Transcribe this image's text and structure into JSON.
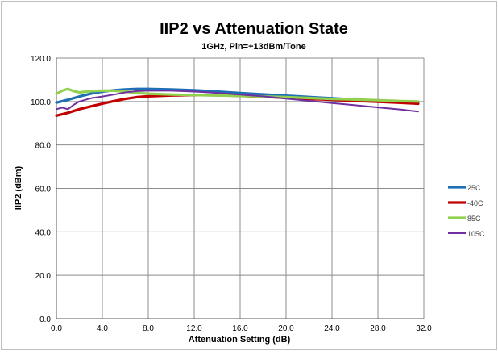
{
  "chart_data": {
    "type": "line",
    "title": "IIP2 vs Attenuation State",
    "subtitle": "1GHz, Pin=+13dBm/Tone",
    "xlabel": "Attenuation Setting (dB)",
    "ylabel": "IIP2 (dBm)",
    "xlim": [
      0,
      32
    ],
    "ylim": [
      0,
      120
    ],
    "x_ticks": [
      "0.0",
      "4.0",
      "8.0",
      "12.0",
      "16.0",
      "20.0",
      "24.0",
      "28.0",
      "32.0"
    ],
    "y_ticks": [
      "0.0",
      "20.0",
      "40.0",
      "60.0",
      "80.0",
      "100.0",
      "120.0"
    ],
    "grid": true,
    "legend_position": "right",
    "series": [
      {
        "name": "25C",
        "color": "#1f6fb5",
        "x": [
          0,
          1,
          2,
          3,
          4,
          5,
          6,
          7,
          8,
          10,
          12,
          14,
          16,
          18,
          20,
          22,
          24,
          26,
          28,
          30,
          31.5
        ],
        "y": [
          99.5,
          100.8,
          102.3,
          103.6,
          104.6,
          105.2,
          105.6,
          105.8,
          105.8,
          105.6,
          105.2,
          104.6,
          103.9,
          103.3,
          102.7,
          102.1,
          101.5,
          100.9,
          100.4,
          99.9,
          99.6
        ]
      },
      {
        "name": "-40C",
        "color": "#c00000",
        "x": [
          0,
          1,
          2,
          3,
          4,
          5,
          6,
          7,
          8,
          10,
          12,
          14,
          16,
          18,
          20,
          22,
          24,
          26,
          28,
          30,
          31.5
        ],
        "y": [
          93.5,
          94.8,
          96.5,
          97.8,
          99.0,
          100.2,
          101.2,
          102.0,
          102.4,
          102.8,
          103.0,
          102.9,
          102.6,
          102.2,
          101.7,
          101.2,
          100.8,
          100.3,
          99.9,
          99.4,
          99.0
        ]
      },
      {
        "name": "85C",
        "color": "#92d050",
        "x": [
          0,
          0.5,
          1,
          1.5,
          2,
          3,
          4,
          5,
          6,
          7,
          8,
          10,
          12,
          14,
          16,
          18,
          20,
          22,
          24,
          26,
          28,
          30,
          31.5
        ],
        "y": [
          103.5,
          105.0,
          105.8,
          104.8,
          104.2,
          104.8,
          105.0,
          105.0,
          104.6,
          104.0,
          103.6,
          103.2,
          103.0,
          102.8,
          102.6,
          102.3,
          102.0,
          101.6,
          101.2,
          100.9,
          100.6,
          100.2,
          100.0
        ]
      },
      {
        "name": "105C",
        "color": "#7030a0",
        "x": [
          0,
          0.5,
          1,
          1.5,
          2,
          3,
          4,
          5,
          6,
          7,
          8,
          10,
          12,
          14,
          16,
          18,
          20,
          22,
          24,
          26,
          28,
          30,
          31.5
        ],
        "y": [
          96.5,
          97.2,
          96.5,
          98.5,
          100.0,
          101.5,
          102.3,
          103.2,
          104.2,
          104.8,
          105.0,
          105.0,
          104.6,
          104.0,
          103.2,
          102.4,
          101.3,
          100.3,
          99.3,
          98.3,
          97.3,
          96.3,
          95.4
        ]
      }
    ]
  }
}
